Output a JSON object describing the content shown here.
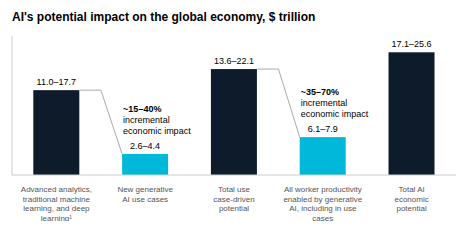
{
  "chart_data": {
    "type": "bar",
    "title": "AI's potential impact on the global economy, $ trillion",
    "categories": [
      "Advanced analytics,\ntraditional machine\nlearning, and deep\nlearning¹",
      "New generative\nAI use cases",
      "Total use\ncase-driven\npotential",
      "All worker productivity\nenabled by generative\nAI, including in use\ncases",
      "Total AI\neconomic\npotential"
    ],
    "values": [
      17.7,
      4.4,
      22.1,
      7.9,
      25.6
    ],
    "value_labels": [
      "11.0–17.7",
      "2.6–4.4",
      "13.6–22.1",
      "6.1–7.9",
      "17.1–25.6"
    ],
    "colors": [
      "#0d1b2a",
      "#00b8d9",
      "#0d1b2a",
      "#00b8d9",
      "#0d1b2a"
    ],
    "ylim": [
      0,
      29
    ],
    "data_labels": true,
    "tick_labels": "x",
    "annotations": [
      {
        "category": "New generative\nAI use cases",
        "text": "~15–40%\nincremental\neconomic impact"
      },
      {
        "category": "All worker productivity\nenabled by generative\nAI, including in use\ncases",
        "text": "~35–70%\nincremental\neconomic impact"
      }
    ]
  }
}
